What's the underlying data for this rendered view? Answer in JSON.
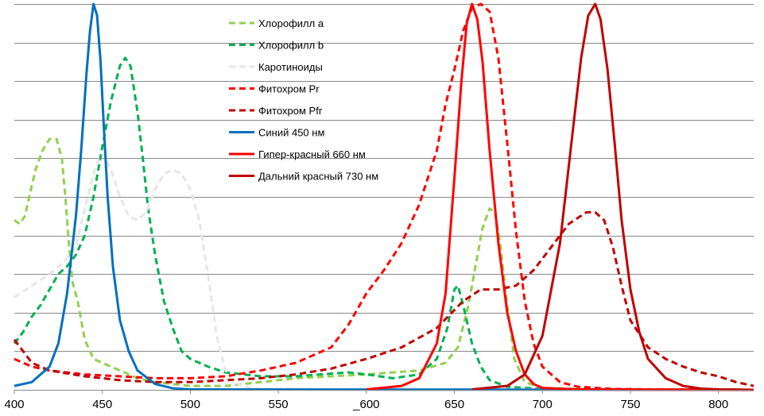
{
  "chart_data": {
    "type": "line",
    "title": "",
    "xlabel": "",
    "ylabel": "",
    "xlim": [
      400,
      820
    ],
    "ylim": [
      0,
      1
    ],
    "x_ticks": [
      400,
      450,
      500,
      550,
      600,
      650,
      700,
      750,
      800
    ],
    "x_tick_labels": [
      "400",
      "450",
      "500",
      "550",
      "_600",
      "650",
      "700",
      "750",
      "800"
    ],
    "grid": "horizontal",
    "legend_position": "top-center",
    "series": [
      {
        "name": "Хлорофилл  a",
        "color": "#92d050",
        "style": "dashed",
        "points": [
          [
            400,
            0.44
          ],
          [
            403,
            0.43
          ],
          [
            406,
            0.45
          ],
          [
            409,
            0.51
          ],
          [
            412,
            0.57
          ],
          [
            416,
            0.62
          ],
          [
            420,
            0.65
          ],
          [
            424,
            0.65
          ],
          [
            427,
            0.6
          ],
          [
            429,
            0.5
          ],
          [
            431,
            0.38
          ],
          [
            433,
            0.28
          ],
          [
            436,
            0.23
          ],
          [
            440,
            0.13
          ],
          [
            445,
            0.08
          ],
          [
            450,
            0.07
          ],
          [
            460,
            0.05
          ],
          [
            470,
            0.03
          ],
          [
            480,
            0.02
          ],
          [
            500,
            0.01
          ],
          [
            520,
            0.01
          ],
          [
            540,
            0.02
          ],
          [
            560,
            0.03
          ],
          [
            580,
            0.035
          ],
          [
            600,
            0.04
          ],
          [
            615,
            0.045
          ],
          [
            630,
            0.05
          ],
          [
            645,
            0.07
          ],
          [
            652,
            0.11
          ],
          [
            658,
            0.22
          ],
          [
            662,
            0.32
          ],
          [
            666,
            0.42
          ],
          [
            670,
            0.47
          ],
          [
            673,
            0.46
          ],
          [
            676,
            0.38
          ],
          [
            680,
            0.22
          ],
          [
            684,
            0.08
          ],
          [
            690,
            0.02
          ],
          [
            700,
            0.005
          ],
          [
            720,
            0.002
          ],
          [
            820,
            0
          ]
        ]
      },
      {
        "name": "Хлорофилл  b",
        "color": "#00b050",
        "style": "dashed",
        "points": [
          [
            400,
            0.12
          ],
          [
            405,
            0.15
          ],
          [
            410,
            0.19
          ],
          [
            415,
            0.22
          ],
          [
            420,
            0.26
          ],
          [
            425,
            0.3
          ],
          [
            430,
            0.32
          ],
          [
            435,
            0.35
          ],
          [
            440,
            0.4
          ],
          [
            445,
            0.5
          ],
          [
            450,
            0.63
          ],
          [
            455,
            0.75
          ],
          [
            460,
            0.84
          ],
          [
            463,
            0.86
          ],
          [
            466,
            0.84
          ],
          [
            470,
            0.72
          ],
          [
            473,
            0.6
          ],
          [
            476,
            0.47
          ],
          [
            480,
            0.35
          ],
          [
            485,
            0.23
          ],
          [
            490,
            0.16
          ],
          [
            495,
            0.1
          ],
          [
            500,
            0.08
          ],
          [
            510,
            0.06
          ],
          [
            520,
            0.045
          ],
          [
            540,
            0.035
          ],
          [
            560,
            0.035
          ],
          [
            580,
            0.042
          ],
          [
            590,
            0.045
          ],
          [
            600,
            0.04
          ],
          [
            615,
            0.03
          ],
          [
            630,
            0.04
          ],
          [
            640,
            0.08
          ],
          [
            646,
            0.16
          ],
          [
            650,
            0.26
          ],
          [
            652,
            0.27
          ],
          [
            655,
            0.22
          ],
          [
            660,
            0.12
          ],
          [
            665,
            0.06
          ],
          [
            670,
            0.025
          ],
          [
            680,
            0.008
          ],
          [
            700,
            0.002
          ],
          [
            820,
            0
          ]
        ]
      },
      {
        "name": "Каротиноиды",
        "color": "#e6e6e6",
        "style": "dashed",
        "points": [
          [
            400,
            0.24
          ],
          [
            410,
            0.27
          ],
          [
            420,
            0.3
          ],
          [
            428,
            0.33
          ],
          [
            435,
            0.37
          ],
          [
            440,
            0.47
          ],
          [
            445,
            0.56
          ],
          [
            448,
            0.6
          ],
          [
            451,
            0.61
          ],
          [
            455,
            0.57
          ],
          [
            460,
            0.5
          ],
          [
            465,
            0.45
          ],
          [
            470,
            0.44
          ],
          [
            475,
            0.46
          ],
          [
            480,
            0.52
          ],
          [
            485,
            0.56
          ],
          [
            490,
            0.57
          ],
          [
            495,
            0.56
          ],
          [
            500,
            0.52
          ],
          [
            505,
            0.44
          ],
          [
            510,
            0.3
          ],
          [
            515,
            0.14
          ],
          [
            520,
            0.05
          ],
          [
            525,
            0.02
          ],
          [
            530,
            0.008
          ],
          [
            540,
            0.002
          ],
          [
            820,
            0
          ]
        ]
      },
      {
        "name": "Фитохром  Pr",
        "color": "#ff0000",
        "style": "dashed",
        "points": [
          [
            400,
            0.08
          ],
          [
            410,
            0.06
          ],
          [
            420,
            0.05
          ],
          [
            440,
            0.04
          ],
          [
            460,
            0.035
          ],
          [
            480,
            0.03
          ],
          [
            500,
            0.03
          ],
          [
            520,
            0.035
          ],
          [
            540,
            0.05
          ],
          [
            560,
            0.07
          ],
          [
            580,
            0.11
          ],
          [
            590,
            0.17
          ],
          [
            600,
            0.25
          ],
          [
            610,
            0.31
          ],
          [
            620,
            0.38
          ],
          [
            630,
            0.48
          ],
          [
            640,
            0.62
          ],
          [
            645,
            0.74
          ],
          [
            650,
            0.83
          ],
          [
            655,
            0.93
          ],
          [
            660,
            0.99
          ],
          [
            665,
            1.0
          ],
          [
            670,
            0.98
          ],
          [
            675,
            0.86
          ],
          [
            680,
            0.64
          ],
          [
            685,
            0.41
          ],
          [
            690,
            0.23
          ],
          [
            695,
            0.12
          ],
          [
            700,
            0.06
          ],
          [
            710,
            0.02
          ],
          [
            720,
            0.008
          ],
          [
            740,
            0.002
          ],
          [
            760,
            0.001
          ],
          [
            820,
            0
          ]
        ]
      },
      {
        "name": "Фитохром  Pfr",
        "color": "#c00000",
        "style": "dashed",
        "points": [
          [
            400,
            0.13
          ],
          [
            405,
            0.1
          ],
          [
            410,
            0.07
          ],
          [
            420,
            0.05
          ],
          [
            440,
            0.035
          ],
          [
            460,
            0.025
          ],
          [
            480,
            0.02
          ],
          [
            500,
            0.02
          ],
          [
            520,
            0.025
          ],
          [
            540,
            0.03
          ],
          [
            560,
            0.04
          ],
          [
            580,
            0.055
          ],
          [
            600,
            0.08
          ],
          [
            620,
            0.11
          ],
          [
            640,
            0.16
          ],
          [
            655,
            0.23
          ],
          [
            665,
            0.26
          ],
          [
            675,
            0.26
          ],
          [
            685,
            0.27
          ],
          [
            695,
            0.31
          ],
          [
            705,
            0.37
          ],
          [
            715,
            0.43
          ],
          [
            725,
            0.46
          ],
          [
            730,
            0.46
          ],
          [
            735,
            0.44
          ],
          [
            740,
            0.37
          ],
          [
            745,
            0.27
          ],
          [
            750,
            0.18
          ],
          [
            760,
            0.11
          ],
          [
            770,
            0.08
          ],
          [
            780,
            0.06
          ],
          [
            790,
            0.045
          ],
          [
            800,
            0.035
          ],
          [
            810,
            0.02
          ],
          [
            820,
            0.01
          ]
        ]
      },
      {
        "name": "Синий  450  нм",
        "color": "#0070c0",
        "style": "solid",
        "points": [
          [
            400,
            0.01
          ],
          [
            410,
            0.02
          ],
          [
            420,
            0.06
          ],
          [
            425,
            0.12
          ],
          [
            430,
            0.25
          ],
          [
            435,
            0.45
          ],
          [
            438,
            0.62
          ],
          [
            441,
            0.82
          ],
          [
            443,
            0.93
          ],
          [
            445,
            1.0
          ],
          [
            447,
            0.97
          ],
          [
            449,
            0.85
          ],
          [
            451,
            0.67
          ],
          [
            453,
            0.5
          ],
          [
            456,
            0.32
          ],
          [
            460,
            0.18
          ],
          [
            465,
            0.1
          ],
          [
            470,
            0.05
          ],
          [
            480,
            0.015
          ],
          [
            490,
            0.004
          ],
          [
            500,
            0.001
          ],
          [
            820,
            0
          ]
        ]
      },
      {
        "name": "Гипер-красный  660  нм",
        "color": "#ff0000",
        "style": "solid",
        "points": [
          [
            600,
            0.001
          ],
          [
            620,
            0.01
          ],
          [
            630,
            0.03
          ],
          [
            640,
            0.12
          ],
          [
            645,
            0.25
          ],
          [
            650,
            0.55
          ],
          [
            654,
            0.8
          ],
          [
            657,
            0.95
          ],
          [
            660,
            1.0
          ],
          [
            663,
            0.96
          ],
          [
            666,
            0.85
          ],
          [
            670,
            0.62
          ],
          [
            675,
            0.38
          ],
          [
            680,
            0.2
          ],
          [
            685,
            0.1
          ],
          [
            690,
            0.04
          ],
          [
            695,
            0.015
          ],
          [
            700,
            0.005
          ],
          [
            720,
            0.001
          ],
          [
            820,
            0
          ]
        ]
      },
      {
        "name": "Дальний  красный  730  нм",
        "color": "#c00000",
        "style": "solid",
        "points": [
          [
            660,
            0.001
          ],
          [
            680,
            0.01
          ],
          [
            690,
            0.04
          ],
          [
            700,
            0.14
          ],
          [
            710,
            0.38
          ],
          [
            718,
            0.7
          ],
          [
            722,
            0.86
          ],
          [
            726,
            0.97
          ],
          [
            730,
            1.0
          ],
          [
            733,
            0.96
          ],
          [
            737,
            0.83
          ],
          [
            741,
            0.64
          ],
          [
            745,
            0.44
          ],
          [
            750,
            0.26
          ],
          [
            755,
            0.15
          ],
          [
            760,
            0.08
          ],
          [
            770,
            0.03
          ],
          [
            780,
            0.01
          ],
          [
            790,
            0.003
          ],
          [
            800,
            0.001
          ],
          [
            820,
            0
          ]
        ]
      }
    ]
  }
}
